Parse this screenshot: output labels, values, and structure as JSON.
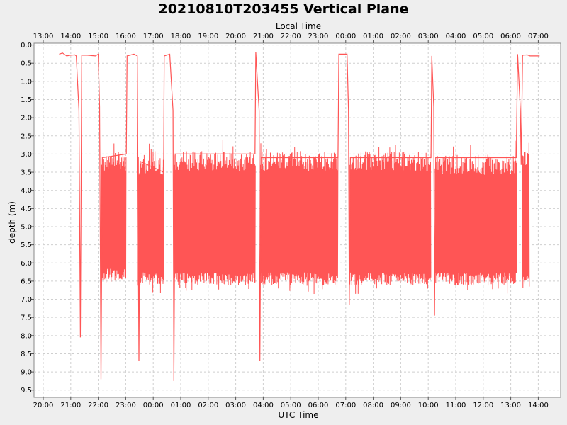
{
  "chart_data": {
    "type": "line",
    "title": "20210810T203455 Vertical Plane",
    "xlabel": "UTC Time",
    "x2label": "Local Time",
    "ylabel": "depth (m)",
    "y_inverted": true,
    "ylim": [
      -0.05,
      9.7
    ],
    "xlim": [
      19.78,
      20.0
    ],
    "x_ticks_utc": [
      "20:00",
      "21:00",
      "22:00",
      "23:00",
      "00:00",
      "01:00",
      "02:00",
      "03:00",
      "04:00",
      "05:00",
      "06:00",
      "07:00",
      "08:00",
      "09:00",
      "10:00",
      "11:00",
      "12:00",
      "13:00",
      "14:00"
    ],
    "x_ticks_local": [
      "13:00",
      "14:00",
      "15:00",
      "16:00",
      "17:00",
      "18:00",
      "19:00",
      "20:00",
      "21:00",
      "22:00",
      "23:00",
      "00:00",
      "01:00",
      "02:00",
      "03:00",
      "04:00",
      "05:00",
      "06:00",
      "07:00"
    ],
    "y_ticks": [
      "0.0",
      "0.5",
      "1.0",
      "1.5",
      "2.0",
      "2.5",
      "3.0",
      "3.5",
      "4.0",
      "4.5",
      "5.0",
      "5.5",
      "6.0",
      "6.5",
      "7.0",
      "7.5",
      "8.0",
      "8.5",
      "9.0",
      "9.5"
    ],
    "grid": true,
    "line_color": "#ff5555",
    "series": [
      {
        "name": "",
        "surface_points": [
          [
            20.58,
            0.25
          ],
          [
            20.7,
            0.22
          ],
          [
            20.85,
            0.3
          ],
          [
            21.0,
            0.28
          ],
          [
            21.15,
            0.27
          ],
          [
            21.2,
            0.3
          ],
          [
            21.3,
            1.8
          ],
          [
            21.35,
            8.05
          ],
          [
            21.4,
            0.28
          ],
          [
            21.6,
            0.28
          ],
          [
            21.9,
            0.3
          ],
          [
            22.0,
            0.25
          ],
          [
            22.05,
            1.7
          ],
          [
            22.1,
            9.2
          ],
          [
            22.15,
            3.1
          ],
          [
            23.02,
            3.0
          ],
          [
            23.05,
            0.3
          ],
          [
            23.3,
            0.25
          ],
          [
            23.42,
            0.3
          ],
          [
            23.48,
            8.7
          ],
          [
            23.52,
            3.2
          ],
          [
            24.38,
            3.5
          ],
          [
            24.4,
            0.3
          ],
          [
            24.6,
            0.25
          ],
          [
            24.72,
            1.8
          ],
          [
            24.75,
            9.25
          ],
          [
            24.8,
            3.0
          ],
          [
            27.7,
            3.0
          ],
          [
            27.73,
            0.2
          ],
          [
            27.85,
            1.8
          ],
          [
            27.88,
            8.7
          ],
          [
            27.92,
            3.1
          ],
          [
            30.72,
            3.1
          ],
          [
            30.75,
            0.25
          ],
          [
            31.05,
            0.25
          ],
          [
            31.1,
            1.8
          ],
          [
            31.13,
            7.15
          ],
          [
            31.17,
            3.1
          ],
          [
            34.1,
            3.1
          ],
          [
            34.13,
            0.3
          ],
          [
            34.2,
            1.7
          ],
          [
            34.23,
            7.45
          ],
          [
            34.27,
            3.1
          ],
          [
            37.2,
            3.1
          ],
          [
            37.25,
            0.25
          ],
          [
            37.35,
            1.8
          ],
          [
            37.38,
            3.3
          ],
          [
            37.43,
            0.28
          ],
          [
            37.6,
            0.27
          ],
          [
            37.7,
            0.3
          ],
          [
            38.05,
            0.3
          ]
        ],
        "dive_segments": [
          {
            "start": 22.12,
            "end": 23.02,
            "top": 3.3,
            "bottom": 6.4
          },
          {
            "start": 23.45,
            "end": 24.38,
            "top": 3.4,
            "bottom": 6.5
          },
          {
            "start": 24.78,
            "end": 27.72,
            "top": 3.3,
            "bottom": 6.5
          },
          {
            "start": 27.9,
            "end": 30.72,
            "top": 3.3,
            "bottom": 6.5
          },
          {
            "start": 31.15,
            "end": 34.1,
            "top": 3.3,
            "bottom": 6.5
          },
          {
            "start": 34.25,
            "end": 37.22,
            "top": 3.4,
            "bottom": 6.5
          },
          {
            "start": 37.42,
            "end": 37.68,
            "top": 3.3,
            "bottom": 6.6
          }
        ]
      }
    ]
  }
}
